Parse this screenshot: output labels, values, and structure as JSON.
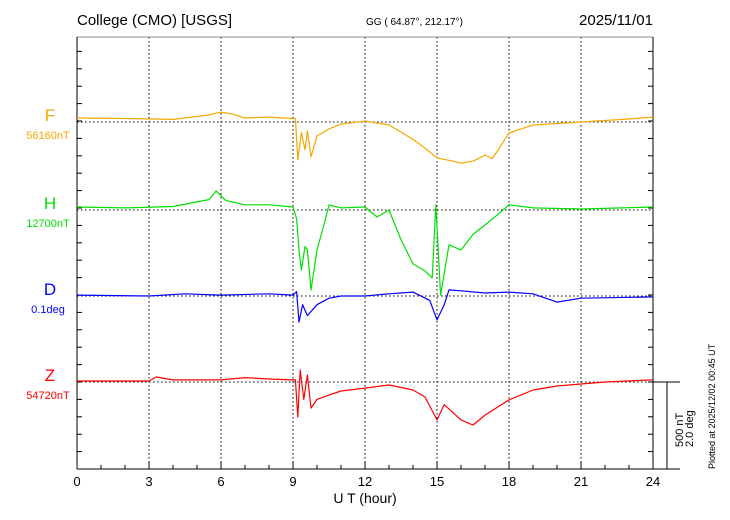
{
  "header": {
    "station": "College (CMO)  [USGS]",
    "coords": "GG ( 64.87°, 212.17°)",
    "date": "2025/11/01"
  },
  "footer": {
    "plotted": "Plotted at 2025/12/02 00:45 UT"
  },
  "chart_data": {
    "type": "line",
    "title": "College (CMO) [USGS] 2025/11/01",
    "xlabel": "U T (hour)",
    "xlim": [
      0,
      24
    ],
    "xticks": [
      "0",
      "3",
      "6",
      "9",
      "12",
      "15",
      "18",
      "21",
      "24"
    ],
    "grid": true,
    "scale_bar": {
      "nT": "500 nT",
      "deg": "2.0 deg",
      "nT_value": 500,
      "deg_value": 2.0
    },
    "series": [
      {
        "name": "F",
        "baseline_label": "56160nT",
        "color": "#f5a800",
        "unit": "nT",
        "points": [
          [
            0,
            23
          ],
          [
            2,
            20
          ],
          [
            4,
            15
          ],
          [
            5.5,
            40
          ],
          [
            6,
            57
          ],
          [
            6.5,
            45
          ],
          [
            7,
            23
          ],
          [
            8,
            28
          ],
          [
            9,
            20
          ],
          [
            9.1,
            20
          ],
          [
            9.2,
            -218
          ],
          [
            9.35,
            -60
          ],
          [
            9.5,
            -160
          ],
          [
            9.6,
            -50
          ],
          [
            9.75,
            -200
          ],
          [
            10,
            -80
          ],
          [
            10.5,
            -40
          ],
          [
            11,
            -12
          ],
          [
            12,
            6
          ],
          [
            13,
            -17
          ],
          [
            14,
            -100
          ],
          [
            14.5,
            -150
          ],
          [
            15,
            -207
          ],
          [
            15.5,
            -220
          ],
          [
            16,
            -236
          ],
          [
            16.5,
            -225
          ],
          [
            17,
            -190
          ],
          [
            17.3,
            -210
          ],
          [
            17.6,
            -150
          ],
          [
            18,
            -63
          ],
          [
            19,
            -17
          ],
          [
            21,
            0
          ],
          [
            23,
            17
          ],
          [
            24,
            28
          ]
        ]
      },
      {
        "name": "H",
        "baseline_label": "12700nT",
        "color": "#00e000",
        "unit": "nT",
        "points": [
          [
            0,
            17
          ],
          [
            2,
            12
          ],
          [
            4,
            20
          ],
          [
            5.5,
            60
          ],
          [
            5.8,
            110
          ],
          [
            6.2,
            55
          ],
          [
            7,
            30
          ],
          [
            8,
            30
          ],
          [
            9,
            17
          ],
          [
            9.15,
            -50
          ],
          [
            9.25,
            -230
          ],
          [
            9.35,
            -345
          ],
          [
            9.5,
            -210
          ],
          [
            9.6,
            -230
          ],
          [
            9.75,
            -460
          ],
          [
            10,
            -230
          ],
          [
            10.3,
            -80
          ],
          [
            10.5,
            29
          ],
          [
            11,
            12
          ],
          [
            12,
            17
          ],
          [
            12.5,
            -40
          ],
          [
            13,
            0
          ],
          [
            13.5,
            -170
          ],
          [
            14,
            -310
          ],
          [
            14.5,
            -350
          ],
          [
            14.8,
            -390
          ],
          [
            14.95,
            29
          ],
          [
            15.15,
            -489
          ],
          [
            15.5,
            -200
          ],
          [
            16,
            -230
          ],
          [
            16.5,
            -140
          ],
          [
            17,
            -86
          ],
          [
            17.5,
            -30
          ],
          [
            18,
            30
          ],
          [
            19,
            12
          ],
          [
            21,
            6
          ],
          [
            24,
            17
          ]
        ]
      },
      {
        "name": "D",
        "baseline_label": "0.1deg",
        "color": "#0000ff",
        "unit": "deg",
        "points": [
          [
            0,
            0.02
          ],
          [
            3,
            0.0
          ],
          [
            4.5,
            0.05
          ],
          [
            6,
            0.02
          ],
          [
            8,
            0.05
          ],
          [
            9,
            0.02
          ],
          [
            9.15,
            0.1
          ],
          [
            9.25,
            -0.6
          ],
          [
            9.4,
            -0.2
          ],
          [
            9.6,
            -0.45
          ],
          [
            10,
            -0.2
          ],
          [
            10.5,
            -0.05
          ],
          [
            11,
            0
          ],
          [
            12,
            0
          ],
          [
            13,
            0.05
          ],
          [
            14,
            0.09
          ],
          [
            14.7,
            -0.1
          ],
          [
            15,
            -0.55
          ],
          [
            15.3,
            -0.2
          ],
          [
            15.5,
            0.14
          ],
          [
            16,
            0.12
          ],
          [
            17,
            0.07
          ],
          [
            18,
            0.09
          ],
          [
            19,
            0.05
          ],
          [
            20,
            -0.14
          ],
          [
            21,
            -0.05
          ],
          [
            24,
            -0.02
          ]
        ]
      },
      {
        "name": "Z",
        "baseline_label": "54720nT",
        "color": "#ff0000",
        "unit": "nT",
        "points": [
          [
            0,
            6
          ],
          [
            3,
            6
          ],
          [
            3.3,
            29
          ],
          [
            4,
            12
          ],
          [
            6,
            12
          ],
          [
            7,
            25
          ],
          [
            8,
            17
          ],
          [
            9,
            12
          ],
          [
            9.1,
            12
          ],
          [
            9.2,
            -201
          ],
          [
            9.3,
            69
          ],
          [
            9.45,
            -100
          ],
          [
            9.6,
            40
          ],
          [
            9.75,
            -150
          ],
          [
            10,
            -100
          ],
          [
            10.5,
            -75
          ],
          [
            11,
            -52
          ],
          [
            12,
            -35
          ],
          [
            13,
            -17
          ],
          [
            14,
            -46
          ],
          [
            14.5,
            -86
          ],
          [
            15,
            -218
          ],
          [
            15.3,
            -130
          ],
          [
            16,
            -218
          ],
          [
            16.5,
            -247
          ],
          [
            17,
            -190
          ],
          [
            18,
            -103
          ],
          [
            19,
            -46
          ],
          [
            20,
            -23
          ],
          [
            22,
            0
          ],
          [
            24,
            12
          ]
        ]
      }
    ]
  }
}
